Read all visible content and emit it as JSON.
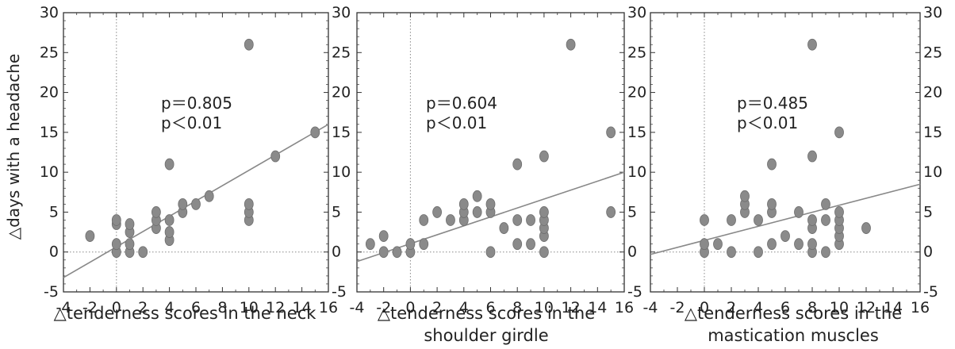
{
  "ylabel": "△days with a headache",
  "chart_data": [
    {
      "type": "scatter",
      "xlabel": "△tenderness scores in the neck",
      "xlim": [
        -4,
        16
      ],
      "ylim": [
        -5,
        30
      ],
      "xticks": [
        "-4",
        "-2",
        "0",
        "2",
        "4",
        "6",
        "8",
        "10",
        "12",
        "14",
        "16"
      ],
      "yticks": [
        "-5",
        "0",
        "5",
        "10",
        "15",
        "20",
        "25",
        "30"
      ],
      "annotation": [
        "p＝0.805",
        "p＜0.01"
      ],
      "fit_line": [
        [
          -4,
          -3.2
        ],
        [
          16,
          16.0
        ]
      ],
      "points": [
        [
          -2,
          2
        ],
        [
          0,
          0
        ],
        [
          0,
          1
        ],
        [
          0,
          3.5
        ],
        [
          0,
          4
        ],
        [
          1,
          0
        ],
        [
          1,
          1
        ],
        [
          1,
          2.5
        ],
        [
          1,
          3.5
        ],
        [
          2,
          0
        ],
        [
          3,
          3
        ],
        [
          3,
          4
        ],
        [
          3,
          5
        ],
        [
          4,
          1.5
        ],
        [
          4,
          2.5
        ],
        [
          4,
          4
        ],
        [
          4,
          11
        ],
        [
          5,
          5
        ],
        [
          5,
          6
        ],
        [
          6,
          6
        ],
        [
          7,
          7
        ],
        [
          10,
          4
        ],
        [
          10,
          5
        ],
        [
          10,
          6
        ],
        [
          10,
          26
        ],
        [
          12,
          12
        ],
        [
          15,
          15
        ]
      ]
    },
    {
      "type": "scatter",
      "xlabel": "△tenderness scores in the shoulder girdle",
      "xlim": [
        -4,
        16
      ],
      "ylim": [
        -5,
        30
      ],
      "xticks": [
        "-4",
        "-2",
        "0",
        "2",
        "4",
        "6",
        "8",
        "10",
        "12",
        "14",
        "16"
      ],
      "yticks": [
        "-5",
        "0",
        "5",
        "10",
        "15",
        "20",
        "25",
        "30"
      ],
      "annotation": [
        "p＝0.604",
        "p＜0.01"
      ],
      "fit_line": [
        [
          -4,
          -1.2
        ],
        [
          16,
          10.0
        ]
      ],
      "points": [
        [
          -3,
          1
        ],
        [
          -2,
          0
        ],
        [
          -2,
          2
        ],
        [
          -1,
          0
        ],
        [
          0,
          0
        ],
        [
          0,
          1
        ],
        [
          1,
          1
        ],
        [
          1,
          4
        ],
        [
          2,
          5
        ],
        [
          3,
          4
        ],
        [
          4,
          4
        ],
        [
          4,
          5
        ],
        [
          4,
          6
        ],
        [
          5,
          5
        ],
        [
          5,
          7
        ],
        [
          6,
          0
        ],
        [
          6,
          5
        ],
        [
          6,
          6
        ],
        [
          7,
          3
        ],
        [
          8,
          1
        ],
        [
          8,
          4
        ],
        [
          8,
          11
        ],
        [
          9,
          1
        ],
        [
          9,
          4
        ],
        [
          10,
          0
        ],
        [
          10,
          2
        ],
        [
          10,
          3
        ],
        [
          10,
          4
        ],
        [
          10,
          5
        ],
        [
          10,
          12
        ],
        [
          12,
          26
        ],
        [
          15,
          5
        ],
        [
          15,
          15
        ]
      ]
    },
    {
      "type": "scatter",
      "xlabel": "△tenderness scores in the mastication muscles",
      "xlim": [
        -4,
        16
      ],
      "ylim": [
        -5,
        30
      ],
      "xticks": [
        "-4",
        "-2",
        "0",
        "2",
        "4",
        "6",
        "8",
        "10",
        "12",
        "14",
        "16"
      ],
      "yticks": [
        "-5",
        "0",
        "5",
        "10",
        "15",
        "20",
        "25",
        "30"
      ],
      "annotation": [
        "p＝0.485",
        "p＜0.01"
      ],
      "fit_line": [
        [
          -4,
          -0.3
        ],
        [
          16,
          8.5
        ]
      ],
      "points": [
        [
          0,
          0
        ],
        [
          0,
          1
        ],
        [
          0,
          4
        ],
        [
          1,
          1
        ],
        [
          2,
          0
        ],
        [
          2,
          4
        ],
        [
          3,
          5
        ],
        [
          3,
          6
        ],
        [
          3,
          7
        ],
        [
          4,
          0
        ],
        [
          4,
          4
        ],
        [
          5,
          1
        ],
        [
          5,
          5
        ],
        [
          5,
          6
        ],
        [
          5,
          11
        ],
        [
          6,
          2
        ],
        [
          7,
          1
        ],
        [
          7,
          5
        ],
        [
          8,
          0
        ],
        [
          8,
          1
        ],
        [
          8,
          3
        ],
        [
          8,
          4
        ],
        [
          8,
          12
        ],
        [
          8,
          26
        ],
        [
          9,
          0
        ],
        [
          9,
          4
        ],
        [
          9,
          6
        ],
        [
          10,
          1
        ],
        [
          10,
          2
        ],
        [
          10,
          3
        ],
        [
          10,
          4
        ],
        [
          10,
          5
        ],
        [
          10,
          15
        ],
        [
          12,
          3
        ]
      ]
    }
  ]
}
